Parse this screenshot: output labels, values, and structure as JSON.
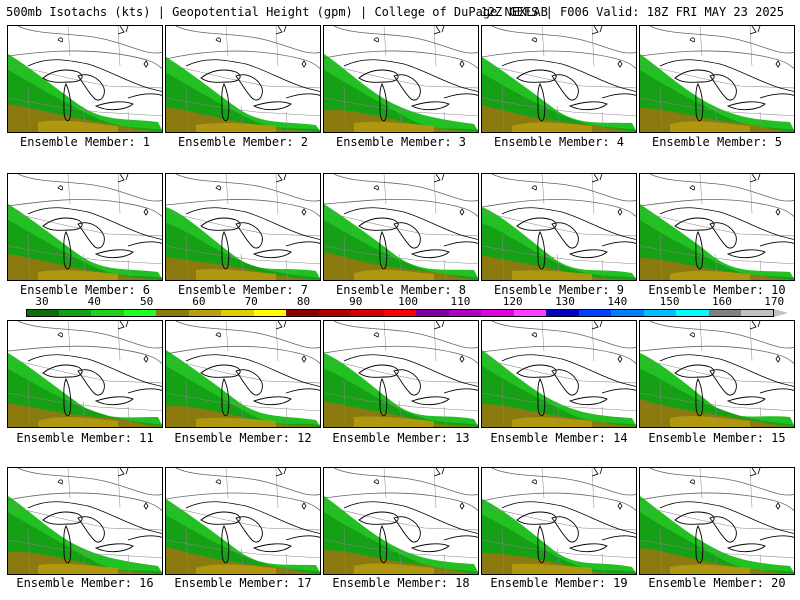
{
  "header": {
    "left": "500mb Isotachs (kts) | Geopotential Height (gpm) | College of DuPage NEXLAB",
    "right": "12Z GEFS | F006 Valid: 18Z FRI MAY 23 2025"
  },
  "panels": [
    {
      "label": "Ensemble Member: 1"
    },
    {
      "label": "Ensemble Member: 2"
    },
    {
      "label": "Ensemble Member: 3"
    },
    {
      "label": "Ensemble Member: 4"
    },
    {
      "label": "Ensemble Member: 5"
    },
    {
      "label": "Ensemble Member: 6"
    },
    {
      "label": "Ensemble Member: 7"
    },
    {
      "label": "Ensemble Member: 8"
    },
    {
      "label": "Ensemble Member: 9"
    },
    {
      "label": "Ensemble Member: 10"
    },
    {
      "label": "Ensemble Member: 11"
    },
    {
      "label": "Ensemble Member: 12"
    },
    {
      "label": "Ensemble Member: 13"
    },
    {
      "label": "Ensemble Member: 14"
    },
    {
      "label": "Ensemble Member: 15"
    },
    {
      "label": "Ensemble Member: 16"
    },
    {
      "label": "Ensemble Member: 17"
    },
    {
      "label": "Ensemble Member: 18"
    },
    {
      "label": "Ensemble Member: 19"
    },
    {
      "label": "Ensemble Member: 20"
    }
  ],
  "colorbar": {
    "labels": [
      "30",
      "40",
      "50",
      "60",
      "70",
      "80",
      "90",
      "100",
      "110",
      "120",
      "130",
      "140",
      "150",
      "160",
      "170"
    ],
    "colors": [
      "#0a6e0a",
      "#16a016",
      "#22d022",
      "#22ff22",
      "#8a7a10",
      "#b8a010",
      "#e0d000",
      "#ffff00",
      "#8b0000",
      "#b00000",
      "#d80000",
      "#ff0000",
      "#8000a0",
      "#b000c0",
      "#e000e0",
      "#ff40ff",
      "#0000c0",
      "#0040ff",
      "#0080ff",
      "#00c0ff",
      "#00ffff",
      "#808080",
      "#c0c0c0"
    ]
  }
}
